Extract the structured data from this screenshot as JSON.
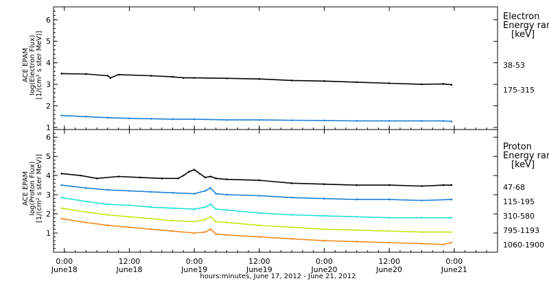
{
  "chart_data": {
    "type": "scatter",
    "x_axis": {
      "label": "hours:minutes, June 17, 2012 - June 21, 2012",
      "ticks": [
        {
          "hour": 0,
          "time": "0:00",
          "date": "June18"
        },
        {
          "hour": 12,
          "time": "12:00",
          "date": "June18"
        },
        {
          "hour": 24,
          "time": "0:00",
          "date": "June19"
        },
        {
          "hour": 36,
          "time": "12:00",
          "date": "June19"
        },
        {
          "hour": 48,
          "time": "0:00",
          "date": "June20"
        },
        {
          "hour": 60,
          "time": "12:00",
          "date": "June20"
        },
        {
          "hour": 72,
          "time": "0:00",
          "date": "June21"
        }
      ],
      "xlim_hours_from_june18": [
        -2,
        80
      ]
    },
    "panels": [
      {
        "id": "electron",
        "ylabel_lines": [
          "ACE EPAM",
          "log(Electron Flux)",
          "[1/(cm² s ster MeV)]"
        ],
        "ylim": [
          0.9,
          6.6
        ],
        "yticks": [
          1,
          2,
          3,
          4,
          5,
          6
        ],
        "legend_title": [
          "Electron",
          "Energy ranges",
          "[keV]"
        ],
        "series": [
          {
            "name": "38-53",
            "color": "#000000",
            "x": [
              -0.5,
              4,
              8,
              8.5,
              10,
              16,
              20,
              22,
              24,
              30,
              36,
              42,
              48,
              54,
              60,
              66,
              70,
              71.5
            ],
            "y": [
              3.5,
              3.48,
              3.4,
              3.3,
              3.45,
              3.4,
              3.35,
              3.3,
              3.3,
              3.28,
              3.25,
              3.18,
              3.15,
              3.1,
              3.05,
              3.0,
              3.02,
              2.98
            ]
          },
          {
            "name": "175-315",
            "color": "#1a7fd4",
            "x": [
              -0.5,
              4,
              8,
              12,
              16,
              20,
              24,
              30,
              36,
              42,
              48,
              54,
              60,
              66,
              70,
              71.5
            ],
            "y": [
              1.55,
              1.5,
              1.45,
              1.42,
              1.4,
              1.38,
              1.38,
              1.35,
              1.35,
              1.33,
              1.32,
              1.3,
              1.3,
              1.3,
              1.3,
              1.28
            ]
          }
        ]
      },
      {
        "id": "proton",
        "ylabel_lines": [
          "ACE EPAM",
          "log(Proton Flux)",
          "[1/(cm² s ster MeV)]"
        ],
        "ylim": [
          0.0,
          6.4
        ],
        "yticks": [
          1,
          2,
          3,
          4,
          5,
          6
        ],
        "legend_title": [
          "Proton",
          "Energy ranges",
          "[keV]"
        ],
        "series": [
          {
            "name": "47-68",
            "color": "#000000",
            "x": [
              -0.5,
              3,
              6,
              10,
              14,
              18,
              21,
              22,
              23,
              24,
              25,
              26,
              27,
              28,
              30,
              36,
              42,
              48,
              54,
              60,
              66,
              70,
              71.5
            ],
            "y": [
              4.1,
              4.0,
              3.85,
              3.95,
              3.9,
              3.85,
              3.85,
              4.0,
              4.2,
              4.3,
              4.1,
              3.9,
              3.95,
              3.85,
              3.8,
              3.75,
              3.6,
              3.55,
              3.5,
              3.5,
              3.45,
              3.5,
              3.5
            ]
          },
          {
            "name": "115-195",
            "color": "#1a7fd4",
            "x": [
              -0.5,
              4,
              8,
              12,
              16,
              20,
              24,
              26,
              27,
              28,
              30,
              36,
              42,
              48,
              54,
              60,
              66,
              71.5
            ],
            "y": [
              3.5,
              3.35,
              3.25,
              3.2,
              3.15,
              3.1,
              3.05,
              3.2,
              3.35,
              3.05,
              3.0,
              2.95,
              2.85,
              2.8,
              2.75,
              2.75,
              2.7,
              2.75
            ]
          },
          {
            "name": "310-580",
            "color": "#22e0d8",
            "x": [
              -0.5,
              4,
              8,
              12,
              16,
              20,
              24,
              26,
              27,
              28,
              30,
              36,
              42,
              48,
              54,
              60,
              66,
              71.5
            ],
            "y": [
              2.85,
              2.65,
              2.5,
              2.45,
              2.35,
              2.3,
              2.25,
              2.35,
              2.5,
              2.25,
              2.2,
              2.05,
              1.95,
              1.9,
              1.85,
              1.8,
              1.8,
              1.8
            ]
          },
          {
            "name": "795-1193",
            "color": "#c8e614",
            "x": [
              -0.5,
              4,
              8,
              12,
              16,
              20,
              24,
              26,
              27,
              28,
              30,
              36,
              42,
              48,
              54,
              60,
              66,
              71.5
            ],
            "y": [
              2.3,
              2.1,
              1.95,
              1.85,
              1.75,
              1.65,
              1.6,
              1.7,
              1.85,
              1.6,
              1.55,
              1.4,
              1.3,
              1.2,
              1.15,
              1.1,
              1.05,
              1.05
            ]
          },
          {
            "name": "1060-1900",
            "color": "#f08a1c",
            "x": [
              -0.5,
              4,
              8,
              12,
              16,
              20,
              24,
              26,
              27,
              28,
              30,
              36,
              42,
              48,
              54,
              60,
              66,
              70,
              71.5
            ],
            "y": [
              1.75,
              1.55,
              1.4,
              1.3,
              1.2,
              1.1,
              1.0,
              1.05,
              1.2,
              0.95,
              0.9,
              0.8,
              0.7,
              0.6,
              0.55,
              0.5,
              0.45,
              0.4,
              0.5
            ]
          }
        ]
      }
    ]
  }
}
